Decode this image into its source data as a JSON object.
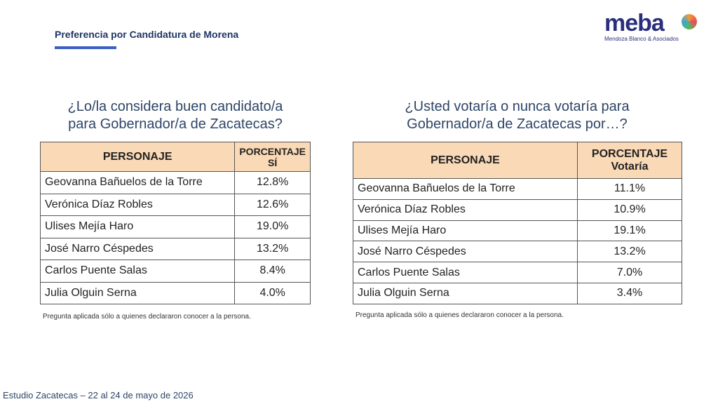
{
  "header": {
    "title": "Preferencia por Candidatura de Morena",
    "logo": "meba",
    "logo_subtitle": "Mendoza Blanco & Asociados"
  },
  "tables": [
    {
      "question": [
        "¿Lo/la considera buen candidato/a",
        "para Gobernador/a de Zacatecas?"
      ],
      "columns": [
        "PERSONAJE",
        [
          "PORCENTAJE",
          "SÍ"
        ]
      ],
      "rows": [
        [
          "Geovanna Bañuelos de la Torre",
          "12.8%"
        ],
        [
          "Verónica Díaz Robles",
          "12.6%"
        ],
        [
          "Ulises Mejía Haro",
          "19.0%"
        ],
        [
          "José Narro Céspedes",
          "13.2%"
        ],
        [
          "Carlos Puente Salas",
          "8.4%"
        ],
        [
          "Julia Olguin Serna",
          "4.0%"
        ]
      ],
      "note": "Pregunta aplicada sólo a quienes declararon conocer a la persona."
    },
    {
      "question": [
        "¿Usted votaría o nunca votaría para",
        "Gobernador/a de Zacatecas por…?"
      ],
      "columns": [
        "PERSONAJE",
        [
          "PORCENTAJE",
          "Votaría"
        ]
      ],
      "rows": [
        [
          "Geovanna Bañuelos de la Torre",
          "11.1%"
        ],
        [
          "Verónica Díaz Robles",
          "10.9%"
        ],
        [
          "Ulises Mejía Haro",
          "19.1%"
        ],
        [
          "José Narro Céspedes",
          "13.2%"
        ],
        [
          "Carlos Puente Salas",
          "7.0%"
        ],
        [
          "Julia Olguin Serna",
          "3.4%"
        ]
      ],
      "note": "Pregunta aplicada sólo a quienes declararon conocer a la persona."
    }
  ],
  "footer": "Estudio Zacatecas – 22 al 24 de mayo de 2026"
}
